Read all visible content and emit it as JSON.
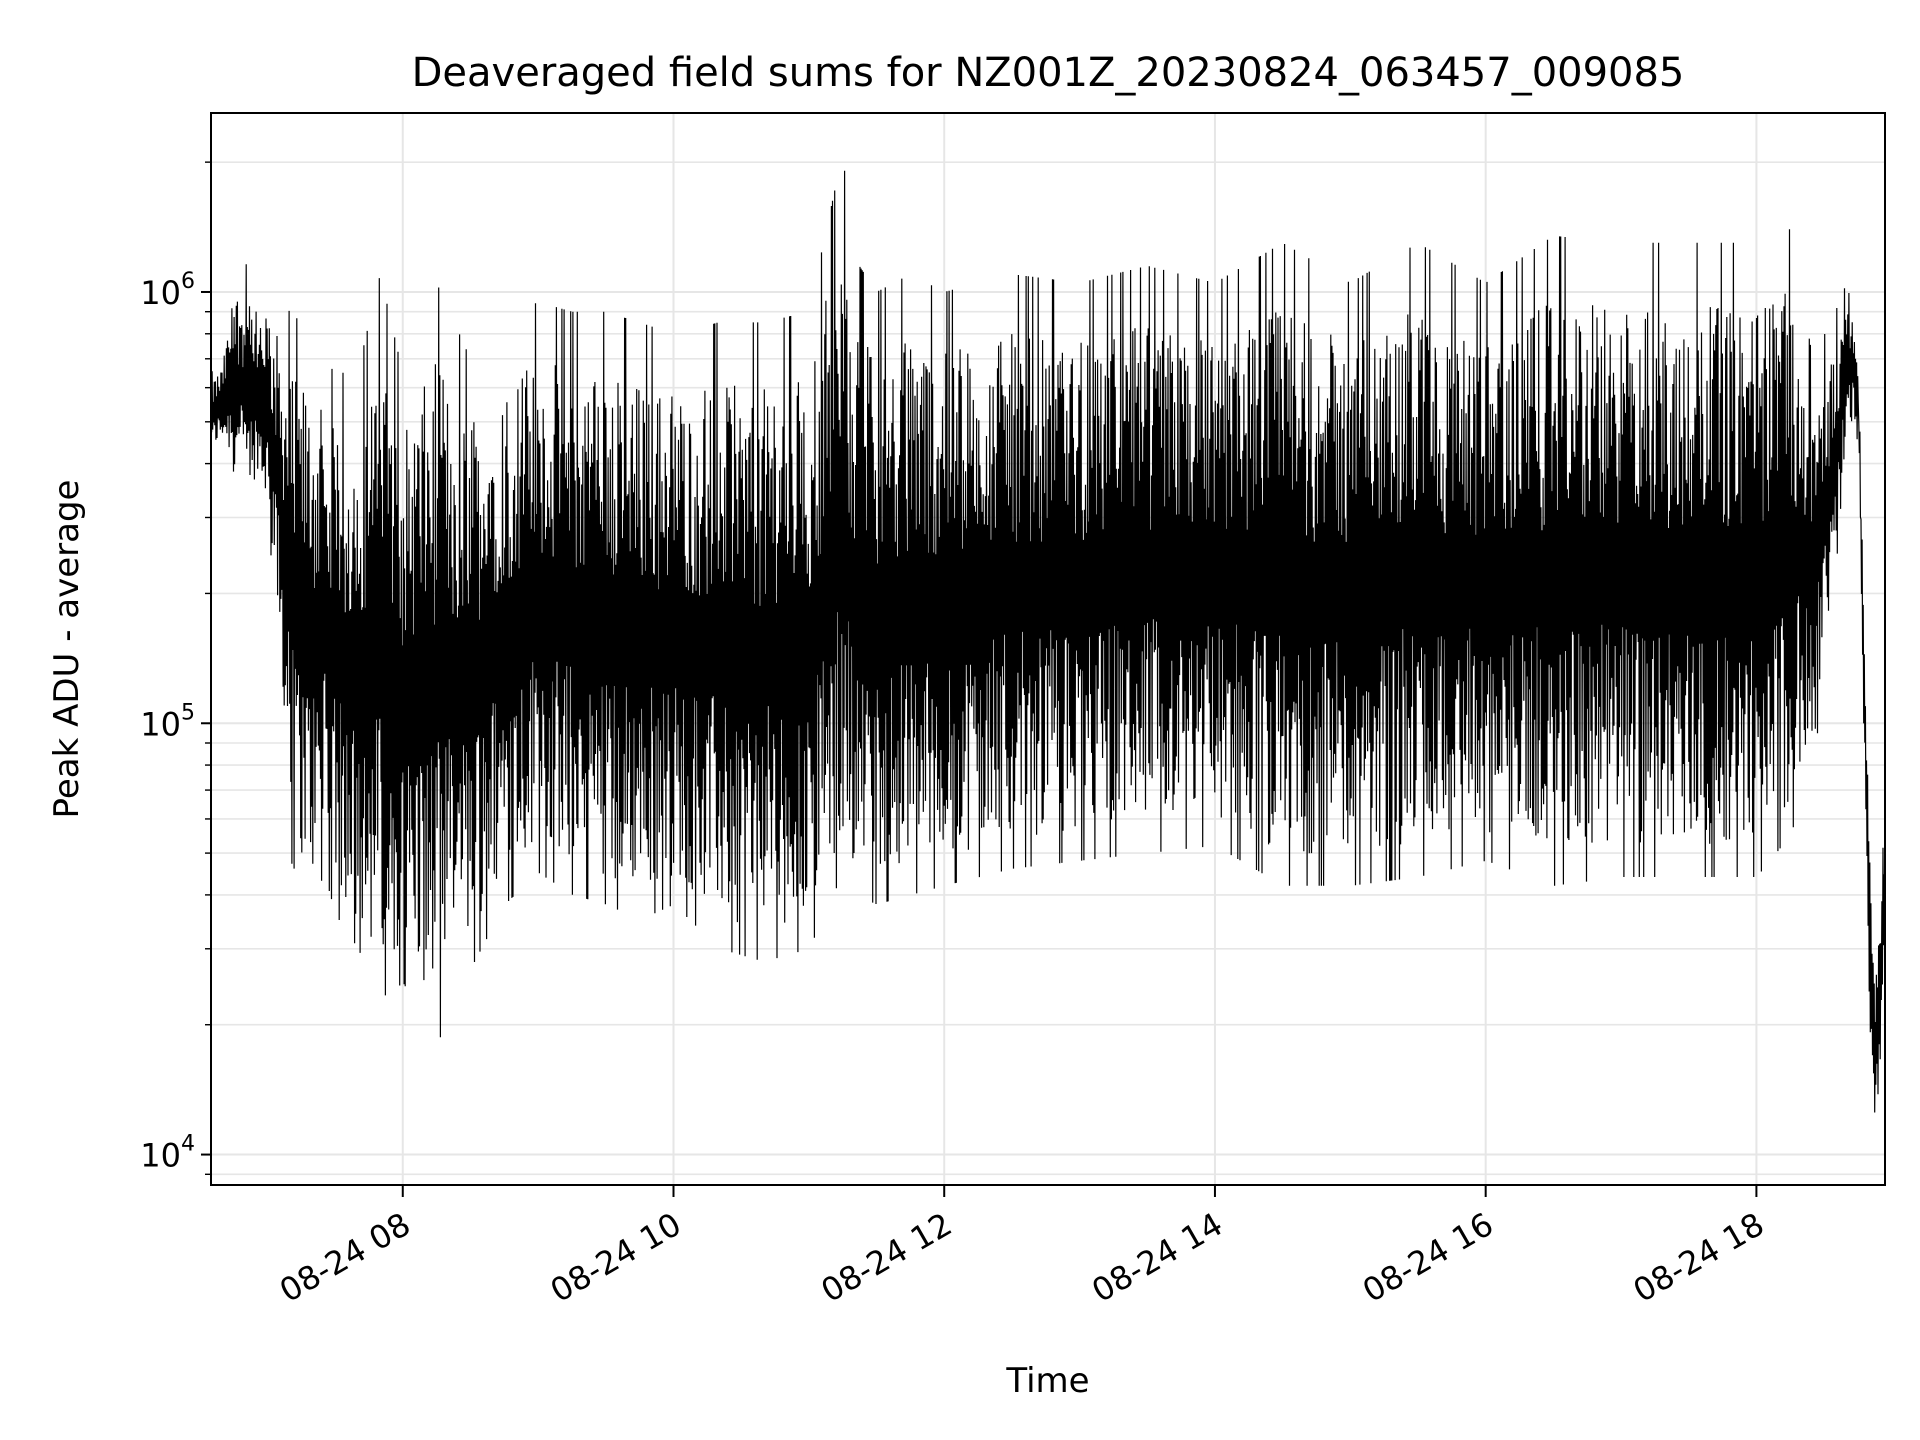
{
  "chart_data": {
    "type": "line",
    "title": "Deaveraged field sums for NZ001Z_20230824_063457_009085",
    "xlabel": "Time",
    "ylabel": "Peak ADU - average",
    "x_scale": "time",
    "y_scale": "log",
    "xlim": [
      "2023-08-24 06:35",
      "2023-08-24 18:57"
    ],
    "ylim": [
      8500,
      2600000
    ],
    "grid": true,
    "legend": "none",
    "line_color": "#000000",
    "grid_color": "#e6e6e6",
    "x_ticks": [
      {
        "value": "2023-08-24 08:00",
        "label": "08-24 08"
      },
      {
        "value": "2023-08-24 10:00",
        "label": "08-24 10"
      },
      {
        "value": "2023-08-24 12:00",
        "label": "08-24 12"
      },
      {
        "value": "2023-08-24 14:00",
        "label": "08-24 14"
      },
      {
        "value": "2023-08-24 16:00",
        "label": "08-24 16"
      },
      {
        "value": "2023-08-24 18:00",
        "label": "08-24 18"
      }
    ],
    "y_ticks": [
      {
        "value": 10000,
        "base": "10",
        "exp": "4"
      },
      {
        "value": 100000,
        "base": "10",
        "exp": "5"
      },
      {
        "value": 1000000,
        "base": "10",
        "exp": "6"
      }
    ],
    "series": [
      {
        "x": [
          "2023-08-24 06:35",
          "2023-08-24 06:40",
          "2023-08-24 06:45",
          "2023-08-24 06:50",
          "2023-08-24 06:55",
          "2023-08-24 07:00",
          "2023-08-24 07:05",
          "2023-08-24 07:10",
          "2023-08-24 07:15",
          "2023-08-24 07:20",
          "2023-08-24 07:25",
          "2023-08-24 07:30",
          "2023-08-24 07:40",
          "2023-08-24 07:50",
          "2023-08-24 08:00",
          "2023-08-24 08:15",
          "2023-08-24 08:30",
          "2023-08-24 08:45",
          "2023-08-24 09:00",
          "2023-08-24 09:15",
          "2023-08-24 09:30",
          "2023-08-24 09:45",
          "2023-08-24 10:00",
          "2023-08-24 10:20",
          "2023-08-24 10:40",
          "2023-08-24 11:00",
          "2023-08-24 11:15",
          "2023-08-24 11:20",
          "2023-08-24 11:30",
          "2023-08-24 11:45",
          "2023-08-24 12:00",
          "2023-08-24 12:30",
          "2023-08-24 13:00",
          "2023-08-24 13:30",
          "2023-08-24 14:00",
          "2023-08-24 14:30",
          "2023-08-24 15:00",
          "2023-08-24 15:30",
          "2023-08-24 16:00",
          "2023-08-24 16:30",
          "2023-08-24 17:00",
          "2023-08-24 17:30",
          "2023-08-24 18:00",
          "2023-08-24 18:15",
          "2023-08-24 18:25",
          "2023-08-24 18:35",
          "2023-08-24 18:40",
          "2023-08-24 18:45",
          "2023-08-24 18:50",
          "2023-08-24 18:53",
          "2023-08-24 18:57"
        ],
        "high": [
          650000,
          700000,
          1100000,
          1200000,
          900000,
          1000000,
          950000,
          900000,
          850000,
          750000,
          700000,
          650000,
          650000,
          1100000,
          650000,
          1050000,
          700000,
          850000,
          950000,
          900000,
          900000,
          850000,
          800000,
          850000,
          850000,
          900000,
          2100000,
          1200000,
          1000000,
          1100000,
          1000000,
          1100000,
          1050000,
          1150000,
          1050000,
          1300000,
          1050000,
          1300000,
          1050000,
          1350000,
          1300000,
          1300000,
          1300000,
          1400000,
          700000,
          900000,
          1050000,
          800000,
          60000,
          30000,
          60000
        ],
        "low": [
          420000,
          450000,
          380000,
          320000,
          380000,
          300000,
          140000,
          48000,
          42000,
          38000,
          45000,
          36000,
          30000,
          23000,
          25000,
          18000,
          27000,
          38000,
          45000,
          40000,
          38000,
          35000,
          38000,
          30000,
          28000,
          30000,
          45000,
          40000,
          38000,
          40000,
          42000,
          46000,
          48000,
          50000,
          52000,
          42000,
          42000,
          44000,
          48000,
          42000,
          44000,
          44000,
          44000,
          55000,
          80000,
          200000,
          500000,
          450000,
          18000,
          11000,
          30000
        ]
      }
    ]
  }
}
